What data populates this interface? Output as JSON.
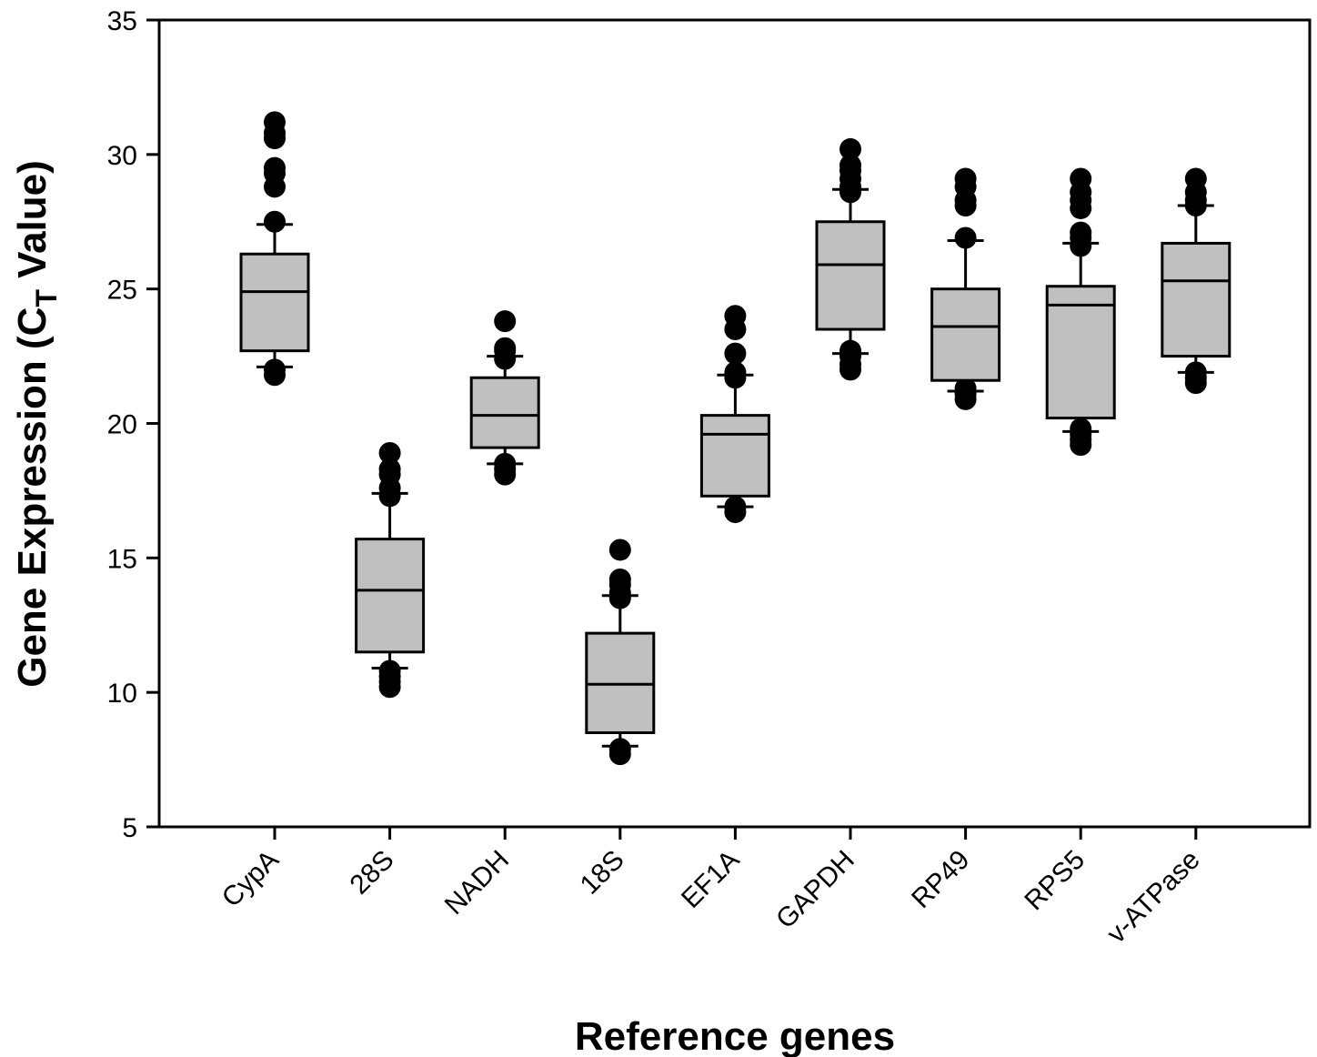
{
  "chart_data": {
    "type": "box",
    "xlabel": "Reference genes",
    "ylabel_main": "Gene Expression (C",
    "ylabel_sub": "T",
    "ylabel_end": " Value)",
    "ylim": [
      5,
      35
    ],
    "yticks": [
      5,
      10,
      15,
      20,
      25,
      30,
      35
    ],
    "grid": false,
    "colors": {
      "box_fill": "#c0c0c0",
      "stroke": "#000000",
      "outlier": "#000000"
    },
    "categories": [
      "CypA",
      "28S",
      "NADH",
      "18S",
      "EF1A",
      "GAPDH",
      "RP49",
      "RPS5",
      "v-ATPase"
    ],
    "boxes": [
      {
        "label": "CypA",
        "whisker_low": 22.1,
        "q1": 22.7,
        "median": 24.9,
        "q3": 26.3,
        "whisker_high": 27.4,
        "outliers": [
          21.8,
          22.0,
          27.5,
          28.8,
          29.3,
          29.5,
          30.6,
          30.8,
          31.2
        ]
      },
      {
        "label": "28S",
        "whisker_low": 10.9,
        "q1": 11.5,
        "median": 13.8,
        "q3": 15.7,
        "whisker_high": 17.4,
        "outliers": [
          10.2,
          10.4,
          10.6,
          10.8,
          17.3,
          17.6,
          18.1,
          18.3,
          18.9
        ]
      },
      {
        "label": "NADH",
        "whisker_low": 18.5,
        "q1": 19.1,
        "median": 20.3,
        "q3": 21.7,
        "whisker_high": 22.5,
        "outliers": [
          18.1,
          18.3,
          18.5,
          22.4,
          22.7,
          22.8,
          23.8
        ]
      },
      {
        "label": "18S",
        "whisker_low": 8.0,
        "q1": 8.5,
        "median": 10.3,
        "q3": 12.2,
        "whisker_high": 13.6,
        "outliers": [
          7.7,
          7.9,
          13.5,
          13.7,
          14.0,
          14.2,
          15.3
        ]
      },
      {
        "label": "EF1A",
        "whisker_low": 16.9,
        "q1": 17.3,
        "median": 19.6,
        "q3": 20.3,
        "whisker_high": 21.8,
        "outliers": [
          16.7,
          16.9,
          21.7,
          21.9,
          22.6,
          23.5,
          24.0
        ]
      },
      {
        "label": "GAPDH",
        "whisker_low": 22.6,
        "q1": 23.5,
        "median": 25.9,
        "q3": 27.5,
        "whisker_high": 28.7,
        "outliers": [
          22.0,
          22.2,
          22.5,
          22.7,
          28.6,
          28.8,
          29.1,
          29.4,
          29.6,
          30.2
        ]
      },
      {
        "label": "RP49",
        "whisker_low": 21.2,
        "q1": 21.6,
        "median": 23.6,
        "q3": 25.0,
        "whisker_high": 26.8,
        "outliers": [
          20.9,
          21.1,
          21.3,
          26.9,
          28.1,
          28.3,
          28.8,
          29.1
        ]
      },
      {
        "label": "RPS5",
        "whisker_low": 19.7,
        "q1": 20.2,
        "median": 24.4,
        "q3": 25.1,
        "whisker_high": 26.7,
        "outliers": [
          19.2,
          19.4,
          19.6,
          19.8,
          26.6,
          26.9,
          27.1,
          28.0,
          28.3,
          28.6,
          29.1
        ]
      },
      {
        "label": "v-ATPase",
        "whisker_low": 21.9,
        "q1": 22.5,
        "median": 25.3,
        "q3": 26.7,
        "whisker_high": 28.1,
        "outliers": [
          21.5,
          21.7,
          21.9,
          28.1,
          28.3,
          28.6,
          29.1
        ]
      }
    ]
  }
}
